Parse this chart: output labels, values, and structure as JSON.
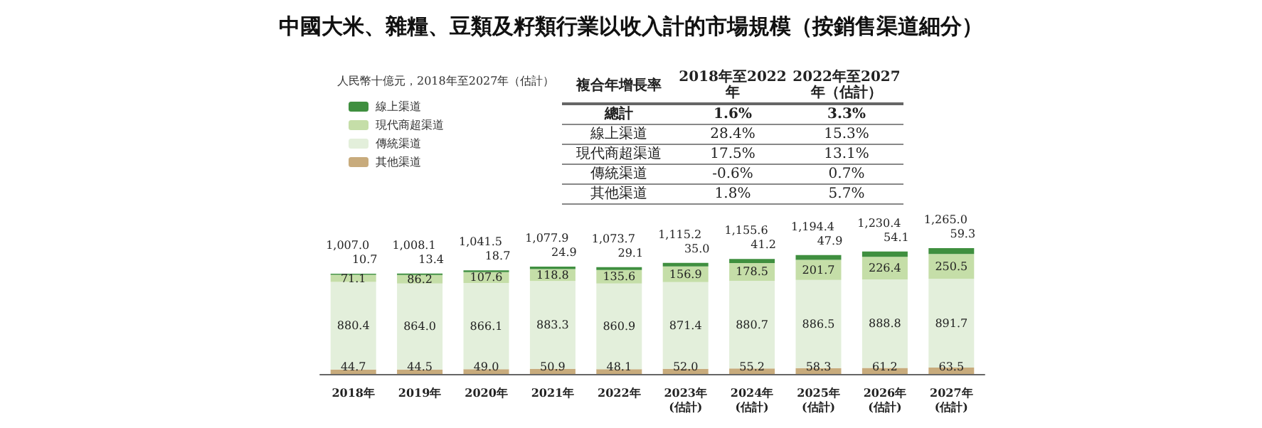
{
  "chart_data": {
    "type": "bar",
    "title": "中國大米、雜糧、豆類及籽類行業以收入計的市場規模（按銷售渠道細分）",
    "subtitle": "人民幣十億元，2018年至2027年（估計）",
    "categories": [
      "2018年",
      "2019年",
      "2020年",
      "2021年",
      "2022年",
      "2023年\n(估計)",
      "2024年\n(估計)",
      "2025年\n(估計)",
      "2026年\n(估計)",
      "2027年\n(估計)"
    ],
    "stacked": true,
    "legend": "top left",
    "series": [
      {
        "name": "其他渠道",
        "color": "#c8ab7c",
        "values": [
          44.7,
          44.5,
          49.0,
          50.9,
          48.1,
          52.0,
          55.2,
          58.3,
          61.2,
          63.5
        ],
        "value_labels": [
          "44.7",
          "44.5",
          "49.0",
          "50.9",
          "48.1",
          "52.0",
          "55.2",
          "58.3",
          "61.2",
          "63.5"
        ]
      },
      {
        "name": "傳統渠道",
        "color": "#e3efdb",
        "values": [
          880.4,
          864.0,
          866.1,
          883.3,
          860.9,
          871.4,
          880.7,
          886.5,
          888.8,
          891.7
        ],
        "value_labels": [
          "880.4",
          "864.0",
          "866.1",
          "883.3",
          "860.9",
          "871.4",
          "880.7",
          "886.5",
          "888.8",
          "891.7"
        ]
      },
      {
        "name": "現代商超渠道",
        "color": "#c5dea8",
        "values": [
          71.1,
          86.2,
          107.6,
          118.8,
          135.6,
          156.9,
          178.5,
          201.7,
          226.4,
          250.5
        ],
        "value_labels": [
          "71.1",
          "86.2",
          "107.6",
          "118.8",
          "135.6",
          "156.9",
          "178.5",
          "201.7",
          "226.4",
          "250.5"
        ]
      },
      {
        "name": "線上渠道",
        "color": "#3f8f3f",
        "values": [
          10.7,
          13.4,
          18.7,
          24.9,
          29.1,
          35.0,
          41.2,
          47.9,
          54.1,
          59.3
        ],
        "value_labels": [
          "10.7",
          "13.4",
          "18.7",
          "24.9",
          "29.1",
          "35.0",
          "41.2",
          "47.9",
          "54.1",
          "59.3"
        ]
      }
    ],
    "totals": [
      "1,007.0",
      "1,008.1",
      "1,041.5",
      "1,077.9",
      "1,073.7",
      "1,115.2",
      "1,155.6",
      "1,194.4",
      "1,230.4",
      "1,265.0"
    ],
    "annotations": [
      "複合年增長率",
      "2018年至2022年",
      "2022年至2027年（估計）",
      "總計",
      "1.6%",
      "3.3%",
      "線上渠道",
      "28.4%",
      "15.3%",
      "現代商超渠道",
      "17.5%",
      "13.1%",
      "傳統渠道",
      "-0.6%",
      "0.7%",
      "其他渠道",
      "1.8%",
      "5.7%"
    ]
  }
}
